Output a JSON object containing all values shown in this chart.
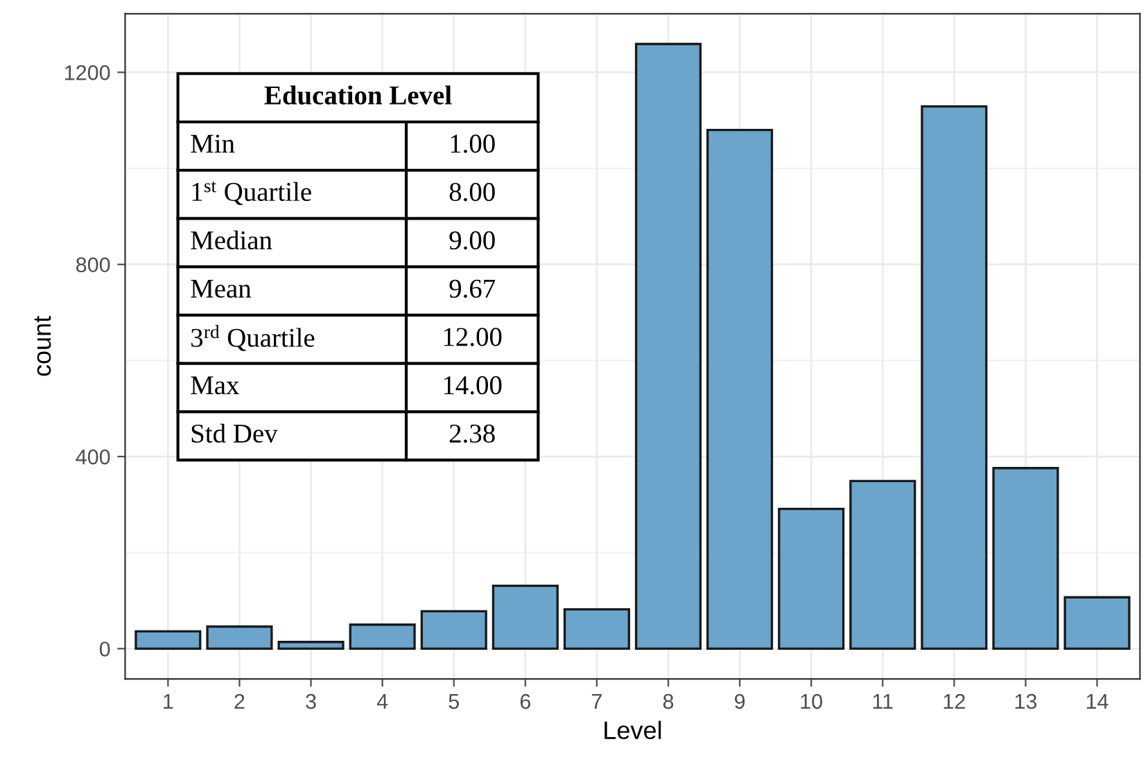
{
  "chart_data": {
    "type": "bar",
    "xlabel": "Level",
    "ylabel": "count",
    "categories": [
      "1",
      "2",
      "3",
      "4",
      "5",
      "6",
      "7",
      "8",
      "9",
      "10",
      "11",
      "12",
      "13",
      "14"
    ],
    "values": [
      36,
      46,
      14,
      50,
      78,
      131,
      82,
      1259,
      1080,
      291,
      349,
      1129,
      376,
      107
    ],
    "color": "#6ba5cc",
    "ylim": [
      -63,
      1322
    ],
    "yticks": [
      0,
      400,
      800,
      1200
    ],
    "grid": true,
    "annotations": [
      "Education Level",
      "Min",
      "1.00",
      "1$^{st}$ Quartile",
      "8.00",
      "Median",
      "9.00",
      "Mean",
      "9.67",
      "3$^{rd}$ Quartile",
      "12.00",
      "Max",
      "14.00",
      "Std Dev",
      "2.38"
    ]
  }
}
